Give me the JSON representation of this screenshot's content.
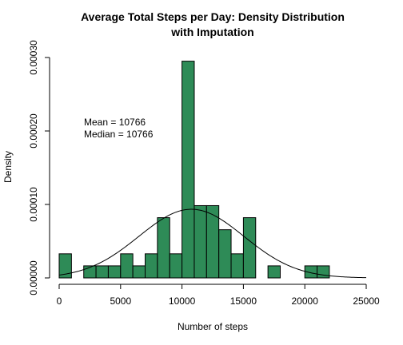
{
  "chart_data": {
    "type": "bar",
    "title_lines": [
      "Average Total Steps per Day: Density Distribution",
      "with Imputation"
    ],
    "xlabel": "Number of steps",
    "ylabel": "Density",
    "xlim": [
      0,
      25000
    ],
    "ylim": [
      0,
      0.0003
    ],
    "x_ticks": [
      0,
      5000,
      10000,
      15000,
      20000,
      25000
    ],
    "x_tick_labels": [
      "0",
      "5000",
      "10000",
      "15000",
      "20000",
      "25000"
    ],
    "y_ticks": [
      0,
      0.0001,
      0.0002,
      0.0003
    ],
    "y_tick_labels": [
      "0.00000",
      "0.00010",
      "0.00020",
      "0.00030"
    ],
    "bin_width": 1000,
    "bar_color": "#2e8b57",
    "bins": [
      {
        "start": 0,
        "density": 3.28e-05
      },
      {
        "start": 1000,
        "density": 0
      },
      {
        "start": 2000,
        "density": 1.64e-05
      },
      {
        "start": 3000,
        "density": 1.64e-05
      },
      {
        "start": 4000,
        "density": 1.64e-05
      },
      {
        "start": 5000,
        "density": 3.28e-05
      },
      {
        "start": 6000,
        "density": 1.64e-05
      },
      {
        "start": 7000,
        "density": 3.28e-05
      },
      {
        "start": 8000,
        "density": 8.2e-05
      },
      {
        "start": 9000,
        "density": 3.28e-05
      },
      {
        "start": 10000,
        "density": 0.000295
      },
      {
        "start": 11000,
        "density": 9.84e-05
      },
      {
        "start": 12000,
        "density": 9.84e-05
      },
      {
        "start": 13000,
        "density": 6.56e-05
      },
      {
        "start": 14000,
        "density": 3.28e-05
      },
      {
        "start": 15000,
        "density": 8.2e-05
      },
      {
        "start": 16000,
        "density": 0
      },
      {
        "start": 17000,
        "density": 1.64e-05
      },
      {
        "start": 18000,
        "density": 0
      },
      {
        "start": 19000,
        "density": 0
      },
      {
        "start": 20000,
        "density": 1.64e-05
      },
      {
        "start": 21000,
        "density": 1.64e-05
      }
    ],
    "density_curve": {
      "mean": 10766,
      "sd": 4269
    },
    "annotations": [
      "Mean =  10766",
      "Median =  10766"
    ]
  }
}
